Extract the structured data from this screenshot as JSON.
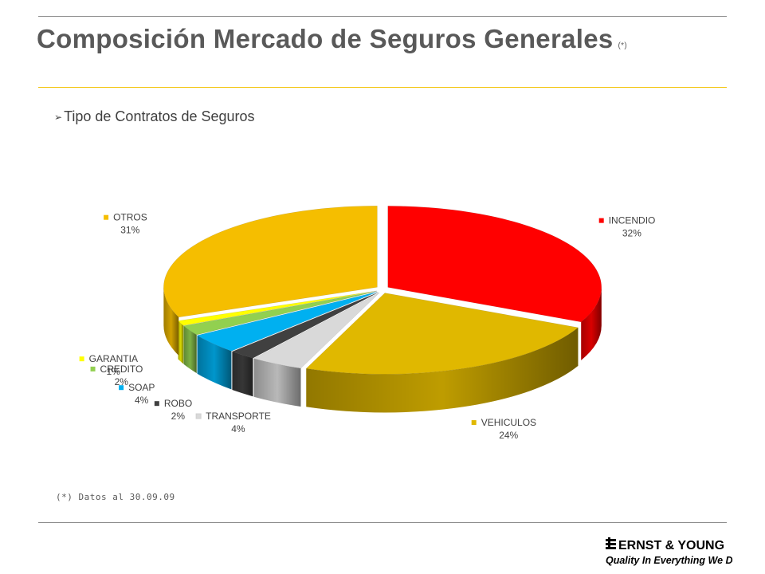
{
  "title": "Composición Mercado de Seguros Generales",
  "title_note": "(*)",
  "subtitle": "Tipo de Contratos de Seguros",
  "subtitle_bullet": "arrow-bullet-icon",
  "footnote": "(*) Datos al 30.09.09",
  "logo": {
    "brand": "ERNST & YOUNG",
    "tagline": "Quality In Everything We Do"
  },
  "chart_data": {
    "type": "pie",
    "style": "3d-exploded",
    "labels": [
      "INCENDIO",
      "VEHICULOS",
      "TRANSPORTE",
      "ROBO",
      "SOAP",
      "CREDITO",
      "GARANTIA",
      "OTROS"
    ],
    "values": [
      32,
      24,
      4,
      2,
      4,
      2,
      1,
      31
    ],
    "value_labels": [
      "32%",
      "24%",
      "4%",
      "2%",
      "4%",
      "2%",
      "1%",
      "31%"
    ],
    "colors": [
      "#ff0000",
      "#e0b800",
      "#d9d9d9",
      "#404040",
      "#00b0f0",
      "#92d050",
      "#ffff00",
      "#f5be00"
    ],
    "legend": "labels beside slices"
  }
}
